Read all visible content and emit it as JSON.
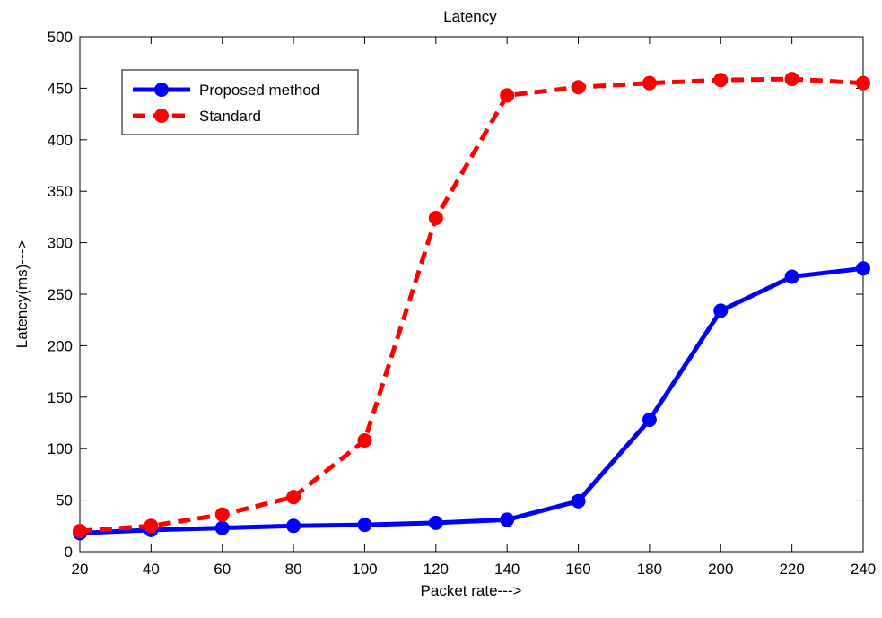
{
  "chart_data": {
    "type": "line",
    "title": "Latency",
    "xlabel": "Packet rate--->",
    "ylabel": "Latency(ms)--->",
    "xlim": [
      20,
      240
    ],
    "ylim": [
      0,
      500
    ],
    "xticks": [
      20,
      40,
      60,
      80,
      100,
      120,
      140,
      160,
      180,
      200,
      220,
      240
    ],
    "yticks": [
      0,
      50,
      100,
      150,
      200,
      250,
      300,
      350,
      400,
      450,
      500
    ],
    "grid": false,
    "legend_position": "top-left",
    "x": [
      20,
      40,
      60,
      80,
      100,
      120,
      140,
      160,
      180,
      200,
      220,
      240
    ],
    "series": [
      {
        "name": "Proposed method",
        "color": "#0000ff",
        "line_style": "solid",
        "marker": "circle",
        "values": [
          18,
          21,
          23,
          25,
          26,
          28,
          31,
          49,
          128,
          234,
          267,
          275
        ]
      },
      {
        "name": "Standard",
        "color": "#ff0000",
        "line_style": "dashed",
        "marker": "circle",
        "values": [
          20,
          25,
          36,
          53,
          108,
          324,
          443,
          451,
          455,
          458,
          459,
          455
        ]
      }
    ]
  }
}
